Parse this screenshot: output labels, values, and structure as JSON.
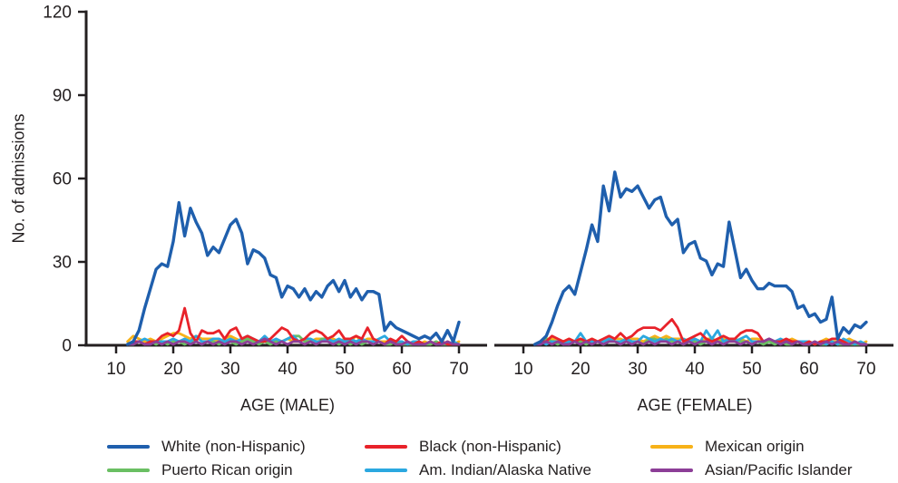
{
  "chart_data": {
    "type": "line",
    "title": "",
    "ylabel": "No. of admissions",
    "ylim": [
      0,
      120
    ],
    "yticks": [
      0,
      30,
      60,
      90,
      120
    ],
    "xticks": [
      10,
      20,
      30,
      40,
      50,
      60,
      70
    ],
    "xlim": [
      10,
      73
    ],
    "grid": false,
    "legend_position": "bottom",
    "ages": [
      12,
      13,
      14,
      15,
      16,
      17,
      18,
      19,
      20,
      21,
      22,
      23,
      24,
      25,
      26,
      27,
      28,
      29,
      30,
      31,
      32,
      33,
      34,
      35,
      36,
      37,
      38,
      39,
      40,
      41,
      42,
      43,
      44,
      45,
      46,
      47,
      48,
      49,
      50,
      51,
      52,
      53,
      54,
      55,
      56,
      57,
      58,
      59,
      60,
      61,
      62,
      63,
      64,
      65,
      66,
      67,
      68,
      69,
      70
    ],
    "panels": [
      {
        "xlabel": "AGE (MALE)",
        "series": [
          {
            "name": "White (non-Hispanic)",
            "values": [
              0,
              1,
              5,
              13,
              20,
              27,
              29,
              28,
              37,
              51,
              39,
              49,
              44,
              40,
              32,
              35,
              33,
              38,
              43,
              45,
              40,
              29,
              34,
              33,
              31,
              25,
              24,
              17,
              21,
              20,
              17,
              20,
              16,
              19,
              17,
              21,
              23,
              19,
              23,
              17,
              20,
              16,
              19,
              19,
              18,
              5,
              8,
              6,
              5,
              4,
              3,
              2,
              3,
              2,
              4,
              1,
              5,
              1,
              8
            ]
          },
          {
            "name": "Black (non-Hispanic)",
            "values": [
              0,
              1,
              1,
              0,
              1,
              1,
              3,
              4,
              3,
              5,
              13,
              4,
              1,
              5,
              4,
              4,
              5,
              2,
              5,
              6,
              2,
              3,
              2,
              1,
              1,
              2,
              4,
              6,
              5,
              2,
              1,
              2,
              4,
              5,
              4,
              2,
              3,
              5,
              2,
              2,
              3,
              2,
              6,
              2,
              1,
              0,
              2,
              1,
              3,
              1,
              0,
              1,
              0,
              1,
              0,
              1,
              0,
              0,
              0
            ]
          },
          {
            "name": "Mexican origin",
            "values": [
              1,
              3,
              2,
              1,
              2,
              1,
              2,
              3,
              4,
              4,
              3,
              2,
              3,
              2,
              2,
              2,
              1,
              2,
              3,
              2,
              1,
              2,
              2,
              1,
              2,
              1,
              1,
              1,
              2,
              1,
              1,
              2,
              1,
              2,
              2,
              1,
              2,
              1,
              2,
              1,
              3,
              1,
              2,
              2,
              1,
              1,
              1,
              0,
              1,
              0,
              1,
              0,
              1,
              0,
              1,
              0,
              1,
              0,
              1
            ]
          },
          {
            "name": "Puerto Rican origin",
            "values": [
              0,
              0,
              1,
              0,
              1,
              0,
              1,
              0,
              1,
              1,
              0,
              1,
              1,
              0,
              1,
              1,
              0,
              1,
              1,
              0,
              1,
              2,
              1,
              0,
              1,
              0,
              1,
              1,
              2,
              3,
              3,
              1,
              1,
              0,
              2,
              2,
              1,
              0,
              1,
              0,
              1,
              0,
              1,
              0,
              1,
              0,
              0,
              1,
              0,
              0,
              0,
              0,
              0,
              0,
              1,
              0,
              0,
              0,
              0
            ]
          },
          {
            "name": "Am. Indian/Alaska Native",
            "values": [
              0,
              1,
              1,
              2,
              1,
              1,
              1,
              1,
              2,
              1,
              2,
              1,
              3,
              1,
              1,
              2,
              2,
              1,
              2,
              1,
              2,
              3,
              2,
              1,
              3,
              1,
              2,
              1,
              2,
              3,
              1,
              2,
              2,
              1,
              1,
              2,
              1,
              2,
              1,
              2,
              1,
              2,
              1,
              1,
              2,
              3,
              1,
              1,
              1,
              0,
              1,
              1,
              0,
              1,
              0,
              1,
              0,
              1,
              0
            ]
          },
          {
            "name": "Asian/Pacific Islander",
            "values": [
              0,
              0,
              1,
              0,
              0,
              1,
              0,
              1,
              0,
              1,
              1,
              0,
              1,
              0,
              1,
              0,
              1,
              0,
              1,
              1,
              0,
              1,
              0,
              1,
              2,
              1,
              0,
              1,
              0,
              1,
              1,
              0,
              1,
              0,
              1,
              1,
              0,
              1,
              0,
              1,
              0,
              1,
              1,
              0,
              1,
              0,
              1,
              0,
              0,
              1,
              0,
              0,
              0,
              1,
              0,
              0,
              1,
              0,
              0
            ]
          }
        ]
      },
      {
        "xlabel": "AGE (FEMALE)",
        "series": [
          {
            "name": "White (non-Hispanic)",
            "values": [
              0,
              1,
              3,
              8,
              14,
              19,
              21,
              18,
              26,
              34,
              43,
              37,
              57,
              48,
              62,
              53,
              56,
              55,
              57,
              53,
              49,
              52,
              53,
              46,
              43,
              45,
              33,
              36,
              37,
              31,
              30,
              25,
              29,
              28,
              44,
              34,
              24,
              27,
              23,
              20,
              20,
              22,
              21,
              21,
              21,
              19,
              13,
              14,
              10,
              11,
              8,
              9,
              17,
              2,
              6,
              4,
              7,
              6,
              8
            ]
          },
          {
            "name": "Black (non-Hispanic)",
            "values": [
              0,
              1,
              1,
              3,
              2,
              1,
              2,
              1,
              2,
              1,
              2,
              1,
              2,
              3,
              2,
              4,
              2,
              3,
              5,
              6,
              6,
              6,
              5,
              7,
              9,
              6,
              1,
              2,
              3,
              4,
              2,
              1,
              2,
              3,
              2,
              2,
              4,
              5,
              5,
              4,
              1,
              2,
              1,
              1,
              2,
              1,
              1,
              0,
              1,
              0,
              1,
              1,
              2,
              2,
              1,
              0,
              1,
              0,
              0
            ]
          },
          {
            "name": "Mexican origin",
            "values": [
              0,
              1,
              2,
              2,
              1,
              1,
              2,
              1,
              2,
              1,
              2,
              1,
              1,
              1,
              2,
              2,
              1,
              2,
              2,
              1,
              2,
              3,
              2,
              3,
              2,
              2,
              2,
              1,
              2,
              1,
              2,
              2,
              1,
              2,
              1,
              1,
              2,
              1,
              2,
              2,
              1,
              1,
              1,
              1,
              1,
              2,
              1,
              1,
              1,
              0,
              1,
              2,
              1,
              1,
              1,
              2,
              1,
              0,
              1
            ]
          },
          {
            "name": "Puerto Rican origin",
            "values": [
              0,
              1,
              2,
              1,
              0,
              1,
              0,
              1,
              1,
              0,
              1,
              1,
              0,
              1,
              1,
              0,
              1,
              1,
              1,
              0,
              2,
              2,
              1,
              2,
              1,
              1,
              0,
              1,
              1,
              0,
              1,
              2,
              1,
              1,
              2,
              2,
              1,
              1,
              0,
              1,
              0,
              1,
              0,
              1,
              0,
              0,
              1,
              0,
              0,
              1,
              0,
              0,
              1,
              0,
              0,
              0,
              0,
              0,
              0
            ]
          },
          {
            "name": "Am. Indian/Alaska Native",
            "values": [
              0,
              1,
              0,
              1,
              1,
              0,
              1,
              1,
              4,
              1,
              1,
              1,
              1,
              2,
              1,
              1,
              2,
              1,
              1,
              3,
              2,
              1,
              2,
              1,
              2,
              1,
              2,
              1,
              2,
              1,
              5,
              2,
              5,
              1,
              2,
              1,
              2,
              3,
              1,
              1,
              1,
              2,
              1,
              2,
              1,
              1,
              1,
              1,
              1,
              0,
              1,
              0,
              1,
              0,
              2,
              1,
              0,
              1,
              0
            ]
          },
          {
            "name": "Asian/Pacific Islander",
            "values": [
              0,
              0,
              1,
              0,
              1,
              0,
              0,
              1,
              0,
              1,
              0,
              1,
              0,
              1,
              1,
              0,
              1,
              0,
              1,
              0,
              1,
              0,
              1,
              1,
              0,
              1,
              0,
              1,
              0,
              1,
              1,
              0,
              1,
              0,
              1,
              1,
              0,
              1,
              0,
              1,
              1,
              2,
              1,
              0,
              1,
              0,
              1,
              0,
              0,
              1,
              0,
              1,
              0,
              1,
              0,
              0,
              1,
              0,
              0
            ]
          }
        ]
      }
    ]
  },
  "legend": {
    "entries": [
      {
        "label": "White (non-Hispanic)",
        "color": "#1f5fad"
      },
      {
        "label": "Black (non-Hispanic)",
        "color": "#e8222a"
      },
      {
        "label": "Mexican origin",
        "color": "#f7b219"
      },
      {
        "label": "Puerto Rican origin",
        "color": "#6abf63"
      },
      {
        "label": "Am. Indian/Alaska Native",
        "color": "#2ba8e0"
      },
      {
        "label": "Asian/Pacific Islander",
        "color": "#8c3e97"
      }
    ]
  },
  "colors": {
    "axis": "#231f20",
    "text": "#231f20",
    "background": "#ffffff"
  }
}
